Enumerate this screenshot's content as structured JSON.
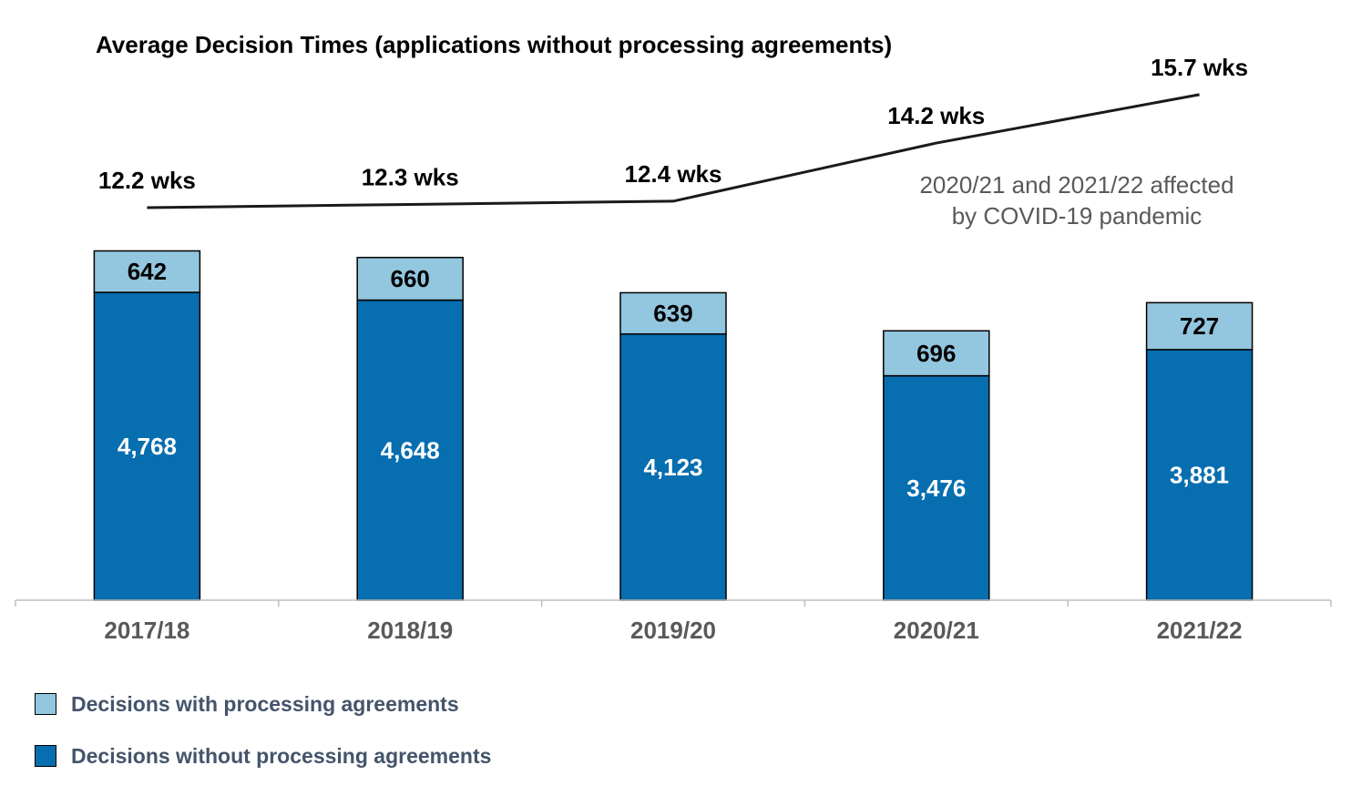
{
  "chart_data": {
    "type": "bar",
    "stacked": true,
    "title": "Average Decision Times (applications without processing agreements)",
    "categories": [
      "2017/18",
      "2018/19",
      "2019/20",
      "2020/21",
      "2021/22"
    ],
    "series": [
      {
        "name": "Decisions without processing agreements",
        "values": [
          4768,
          4648,
          4123,
          3476,
          3881
        ],
        "color": "#076eb0"
      },
      {
        "name": "Decisions with processing agreements",
        "values": [
          642,
          660,
          639,
          696,
          727
        ],
        "color": "#93c6df"
      }
    ],
    "bar_labels": {
      "bottom": [
        "4,768",
        "4,648",
        "4,123",
        "3,476",
        "3,881"
      ],
      "top": [
        "642",
        "660",
        "639",
        "696",
        "727"
      ]
    },
    "line": {
      "values": [
        12.2,
        12.3,
        12.4,
        14.2,
        15.7
      ],
      "labels": [
        "12.2 wks",
        "12.3 wks",
        "12.4 wks",
        "14.2 wks",
        "15.7 wks"
      ],
      "color": "#1a1a1a"
    },
    "annotation": [
      "2020/21 and 2021/22 affected",
      "by COVID-19 pandemic"
    ],
    "legend_position": "bottom-left"
  },
  "legend": [
    {
      "label": "Decisions with processing agreements",
      "color": "#93c6df"
    },
    {
      "label": "Decisions without processing agreements",
      "color": "#076eb0"
    }
  ]
}
